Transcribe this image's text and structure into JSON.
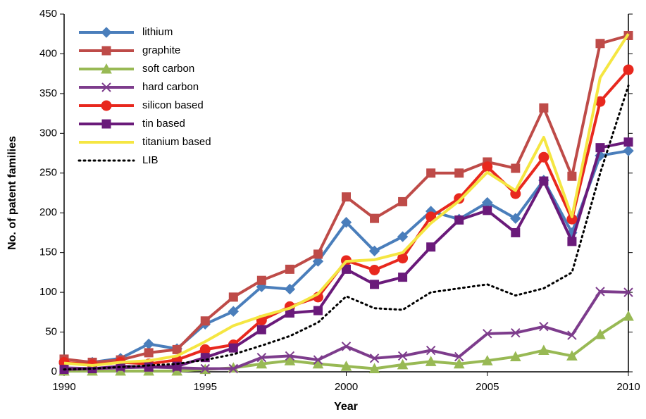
{
  "chart_data": {
    "type": "line",
    "x_label": "Year",
    "y_label": "No. of patent families",
    "x": [
      1990,
      1991,
      1992,
      1993,
      1994,
      1995,
      1996,
      1997,
      1998,
      1999,
      2000,
      2001,
      2002,
      2003,
      2004,
      2005,
      2006,
      2007,
      2008,
      2009,
      2010
    ],
    "xlim": [
      1990,
      2010
    ],
    "xticks": [
      1990,
      1995,
      2000,
      2005,
      2010
    ],
    "ylim": [
      0,
      450
    ],
    "yticks": [
      0,
      50,
      100,
      150,
      200,
      250,
      300,
      350,
      400,
      450
    ],
    "legend": "upper left",
    "series": [
      {
        "name": "lithium",
        "color": "#4a7ebb",
        "marker": "diamond",
        "values": [
          10,
          12,
          17,
          35,
          29,
          60,
          76,
          107,
          104,
          139,
          188,
          152,
          170,
          202,
          192,
          213,
          193,
          241,
          175,
          272,
          278
        ]
      },
      {
        "name": "graphite",
        "color": "#be4b48",
        "marker": "square",
        "values": [
          16,
          12,
          15,
          24,
          28,
          64,
          94,
          115,
          129,
          148,
          220,
          193,
          214,
          250,
          250,
          264,
          256,
          332,
          246,
          413,
          423
        ]
      },
      {
        "name": "soft carbon",
        "color": "#98b954",
        "marker": "triangle",
        "values": [
          1,
          1,
          1,
          1,
          1,
          3,
          5,
          10,
          14,
          10,
          7,
          4,
          9,
          13,
          10,
          14,
          19,
          27,
          20,
          47,
          70
        ]
      },
      {
        "name": "hard carbon",
        "color": "#7d3c8c",
        "marker": "x",
        "values": [
          5,
          4,
          5,
          6,
          5,
          4,
          4,
          18,
          20,
          15,
          32,
          17,
          20,
          27,
          19,
          48,
          49,
          57,
          46,
          101,
          100
        ]
      },
      {
        "name": "silicon based",
        "color": "#e8281e",
        "marker": "circle",
        "values": [
          12,
          9,
          12,
          10,
          15,
          28,
          34,
          65,
          82,
          94,
          140,
          128,
          143,
          195,
          218,
          258,
          224,
          270,
          192,
          340,
          380
        ]
      },
      {
        "name": "tin based",
        "color": "#6a1a7a",
        "marker": "square",
        "values": [
          3,
          4,
          7,
          6,
          7,
          18,
          30,
          53,
          74,
          77,
          129,
          110,
          119,
          157,
          191,
          203,
          175,
          240,
          164,
          282,
          289
        ]
      },
      {
        "name": "titanium based",
        "color": "#f5e642",
        "marker": "none",
        "values": [
          11,
          8,
          12,
          14,
          20,
          38,
          58,
          70,
          80,
          98,
          139,
          141,
          150,
          187,
          215,
          251,
          228,
          295,
          195,
          370,
          425
        ]
      },
      {
        "name": "LIB",
        "color": "#000000",
        "marker": "none",
        "dash": "dotted",
        "values": [
          3,
          4,
          6,
          8,
          10,
          15,
          22,
          33,
          45,
          62,
          95,
          80,
          78,
          100,
          105,
          110,
          96,
          105,
          125,
          250,
          360
        ]
      }
    ]
  }
}
